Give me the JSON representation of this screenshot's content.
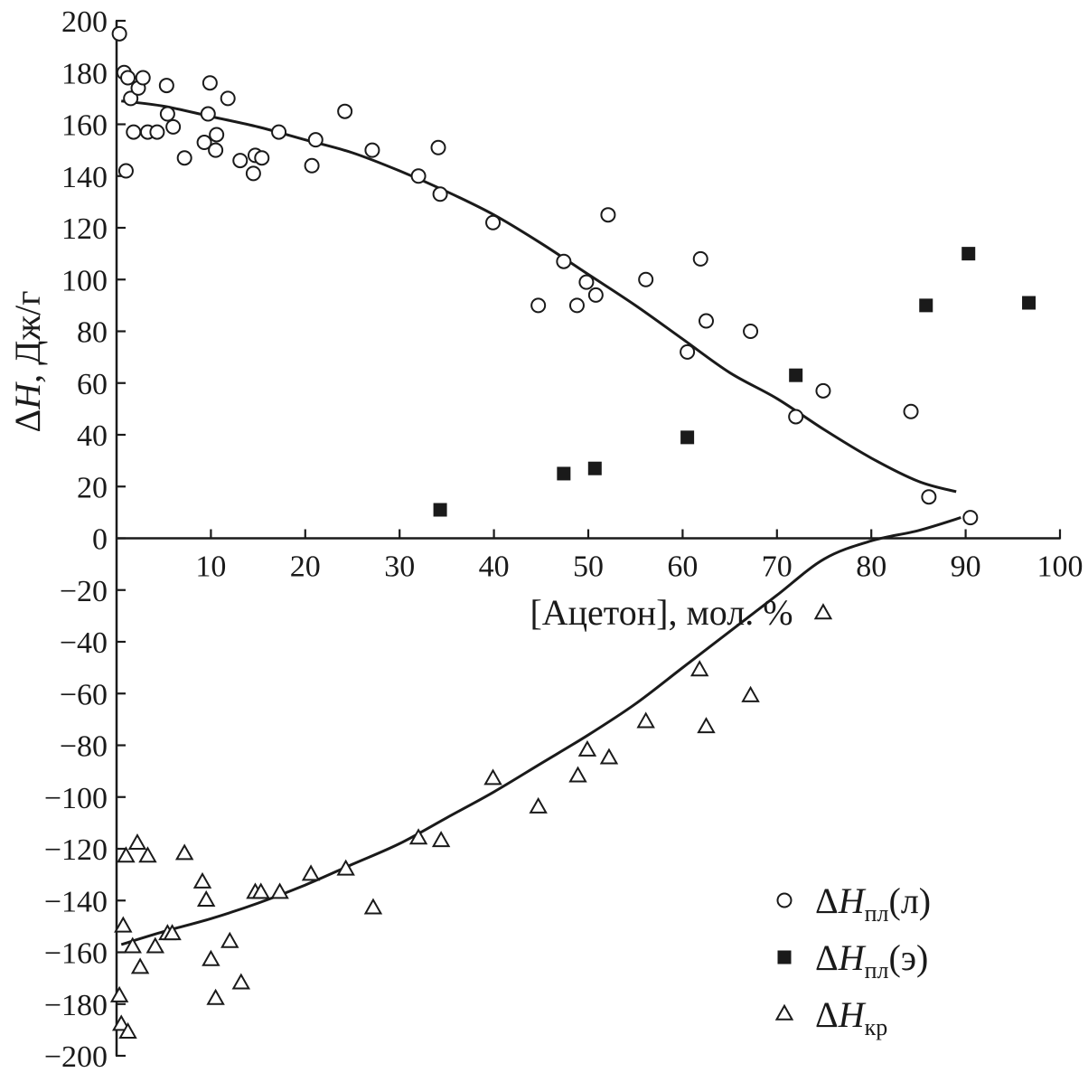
{
  "chart_data": {
    "type": "scatter",
    "title": "",
    "xlabel": "[Ацетон], мол. %",
    "ylabel": "ΔH, Дж/г",
    "xlim": [
      0,
      100
    ],
    "ylim": [
      -200,
      200
    ],
    "x_ticks": [
      10,
      20,
      30,
      40,
      50,
      60,
      70,
      80,
      90,
      100
    ],
    "y_ticks": [
      200,
      180,
      160,
      140,
      120,
      100,
      80,
      60,
      40,
      20,
      0,
      -20,
      -40,
      -60,
      -80,
      -100,
      -120,
      -140,
      -160,
      -180,
      -200
    ],
    "x_tick_labels": [
      "10",
      "20",
      "30",
      "40",
      "50",
      "60",
      "70",
      "80",
      "90",
      "100"
    ],
    "y_tick_labels": [
      "200",
      "180",
      "160",
      "140",
      "120",
      "100",
      "80",
      "60",
      "40",
      "20",
      "0",
      "−20",
      "−40",
      "−60",
      "−80",
      "−100",
      "−120",
      "−140",
      "−160",
      "−180",
      "−200"
    ],
    "grid": false,
    "legend_position": "bottom-right",
    "series": [
      {
        "name": "ΔHпл(л)",
        "legend_main": "ΔH",
        "legend_sub": "пл",
        "legend_suffix": "(л)",
        "marker": "open-circle",
        "points": [
          [
            0.3,
            195
          ],
          [
            0.8,
            180
          ],
          [
            1.2,
            178
          ],
          [
            1.5,
            170
          ],
          [
            1.0,
            142
          ],
          [
            1.8,
            157
          ],
          [
            2.3,
            174
          ],
          [
            2.8,
            178
          ],
          [
            3.3,
            157
          ],
          [
            4.3,
            157
          ],
          [
            5.3,
            175
          ],
          [
            5.4,
            164
          ],
          [
            6.0,
            159
          ],
          [
            7.2,
            147
          ],
          [
            9.3,
            153
          ],
          [
            9.7,
            164
          ],
          [
            9.9,
            176
          ],
          [
            10.5,
            150
          ],
          [
            10.6,
            156
          ],
          [
            11.8,
            170
          ],
          [
            13.1,
            146
          ],
          [
            14.5,
            141
          ],
          [
            14.7,
            148
          ],
          [
            15.4,
            147
          ],
          [
            17.2,
            157
          ],
          [
            20.7,
            144
          ],
          [
            21.1,
            154
          ],
          [
            24.2,
            165
          ],
          [
            27.1,
            150
          ],
          [
            32.0,
            140
          ],
          [
            34.1,
            151
          ],
          [
            34.3,
            133
          ],
          [
            39.9,
            122
          ],
          [
            44.7,
            90
          ],
          [
            47.4,
            107
          ],
          [
            48.8,
            90
          ],
          [
            49.8,
            99
          ],
          [
            50.8,
            94
          ],
          [
            52.1,
            125
          ],
          [
            56.1,
            100
          ],
          [
            60.5,
            72
          ],
          [
            61.9,
            108
          ],
          [
            62.5,
            84
          ],
          [
            67.2,
            80
          ],
          [
            72.0,
            47
          ],
          [
            74.9,
            57
          ],
          [
            84.2,
            49
          ],
          [
            86.1,
            16
          ],
          [
            90.5,
            8
          ]
        ]
      },
      {
        "name": "ΔHпл(э)",
        "legend_main": "ΔH",
        "legend_sub": "пл",
        "legend_suffix": "(э)",
        "marker": "filled-square",
        "points": [
          [
            34.3,
            11
          ],
          [
            47.4,
            25
          ],
          [
            50.7,
            27
          ],
          [
            60.5,
            39
          ],
          [
            72.0,
            63
          ],
          [
            85.8,
            90
          ],
          [
            90.3,
            110
          ],
          [
            96.7,
            91
          ]
        ]
      },
      {
        "name": "ΔHкр",
        "legend_main": "ΔH",
        "legend_sub": "кр",
        "legend_suffix": "",
        "marker": "open-triangle",
        "points": [
          [
            0.3,
            -177
          ],
          [
            0.5,
            -188
          ],
          [
            0.7,
            -150
          ],
          [
            1.0,
            -123
          ],
          [
            1.2,
            -191
          ],
          [
            1.7,
            -158
          ],
          [
            2.2,
            -118
          ],
          [
            2.5,
            -166
          ],
          [
            3.3,
            -123
          ],
          [
            4.1,
            -158
          ],
          [
            5.4,
            -153
          ],
          [
            5.9,
            -153
          ],
          [
            7.2,
            -122
          ],
          [
            9.1,
            -133
          ],
          [
            9.5,
            -140
          ],
          [
            10.0,
            -163
          ],
          [
            10.5,
            -178
          ],
          [
            12.0,
            -156
          ],
          [
            13.2,
            -172
          ],
          [
            14.7,
            -137
          ],
          [
            15.3,
            -137
          ],
          [
            17.3,
            -137
          ],
          [
            20.6,
            -130
          ],
          [
            24.3,
            -128
          ],
          [
            27.2,
            -143
          ],
          [
            32.0,
            -116
          ],
          [
            34.4,
            -117
          ],
          [
            39.9,
            -93
          ],
          [
            44.7,
            -104
          ],
          [
            48.9,
            -92
          ],
          [
            49.9,
            -82
          ],
          [
            52.2,
            -85
          ],
          [
            56.1,
            -71
          ],
          [
            61.8,
            -51
          ],
          [
            62.5,
            -73
          ],
          [
            67.2,
            -61
          ],
          [
            74.9,
            -29
          ]
        ]
      }
    ],
    "fit_curves": [
      {
        "for": "ΔHпл(л)",
        "points": [
          [
            0.5,
            169
          ],
          [
            5,
            167
          ],
          [
            10,
            163
          ],
          [
            15,
            159
          ],
          [
            20,
            154
          ],
          [
            25,
            149
          ],
          [
            30,
            142
          ],
          [
            35,
            134
          ],
          [
            40,
            125
          ],
          [
            45,
            114
          ],
          [
            50,
            102
          ],
          [
            55,
            90
          ],
          [
            60,
            77
          ],
          [
            65,
            64
          ],
          [
            70,
            54
          ],
          [
            75,
            42
          ],
          [
            80,
            31
          ],
          [
            85,
            22
          ],
          [
            89,
            18
          ]
        ]
      },
      {
        "for": "ΔHкр",
        "points": [
          [
            0.5,
            -157
          ],
          [
            5,
            -152
          ],
          [
            10,
            -147
          ],
          [
            15,
            -141
          ],
          [
            20,
            -134
          ],
          [
            25,
            -126
          ],
          [
            30,
            -118
          ],
          [
            35,
            -108
          ],
          [
            40,
            -98
          ],
          [
            45,
            -87
          ],
          [
            50,
            -76
          ],
          [
            55,
            -64
          ],
          [
            60,
            -50
          ],
          [
            65,
            -36
          ],
          [
            70,
            -22
          ],
          [
            75,
            -8
          ],
          [
            80,
            -1
          ],
          [
            85,
            3
          ],
          [
            89.5,
            8
          ]
        ]
      }
    ],
    "colors": {
      "ink": "#1a1a1a",
      "background": "#ffffff"
    }
  }
}
